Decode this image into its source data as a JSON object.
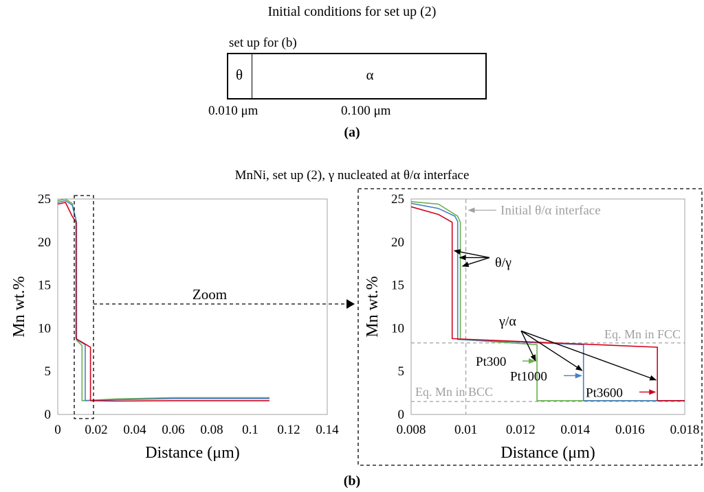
{
  "setup_panel": {
    "title": "Initial conditions for set up (2)",
    "subtitle": "set up for (b)",
    "theta_label": "θ",
    "alpha_label": "α",
    "theta_length": "0.010 μm",
    "alpha_length": "0.100 μm",
    "panel_label": "(a)"
  },
  "figure": {
    "title": "MnNi, set up (2), γ nucleated at θ/α interface",
    "panel_label": "(b)"
  },
  "colors": {
    "pt300": "#6ab04c",
    "pt1000": "#4a7fc1",
    "pt3600": "#d0021b",
    "axis": "#a0a0a0",
    "reference": "#a0a0a0",
    "annotation": "#000000"
  },
  "chart_data": [
    {
      "type": "line",
      "xlabel": "Distance (μm)",
      "ylabel": "Mn wt.%",
      "xlim": [
        0,
        0.14
      ],
      "ylim": [
        0,
        25
      ],
      "xticks": [
        "0",
        "0.02",
        "0.04",
        "0.06",
        "0.08",
        "0.1",
        "0.12",
        "0.14"
      ],
      "yticks": [
        "0",
        "5",
        "10",
        "15",
        "20",
        "25"
      ],
      "zoom_label": "Zoom",
      "zoom_region": {
        "x": [
          0.008,
          0.018
        ],
        "y": [
          0,
          25
        ]
      },
      "series": [
        {
          "key": "pt300",
          "points": [
            [
              0,
              24.8
            ],
            [
              0.004,
              25
            ],
            [
              0.0075,
              24.5
            ],
            [
              0.0098,
              22.3
            ],
            [
              0.0098,
              8.6
            ],
            [
              0.0126,
              8
            ],
            [
              0.0126,
              1.6
            ],
            [
              0.03,
              1.8
            ],
            [
              0.06,
              1.95
            ],
            [
              0.11,
              1.95
            ]
          ]
        },
        {
          "key": "pt1000",
          "points": [
            [
              0,
              24.6
            ],
            [
              0.004,
              24.8
            ],
            [
              0.0075,
              24.3
            ],
            [
              0.0097,
              22.3
            ],
            [
              0.0097,
              8.7
            ],
            [
              0.0143,
              8.1
            ],
            [
              0.0143,
              1.6
            ],
            [
              0.03,
              1.7
            ],
            [
              0.06,
              1.85
            ],
            [
              0.11,
              1.85
            ]
          ]
        },
        {
          "key": "pt3600",
          "points": [
            [
              0,
              24.4
            ],
            [
              0.004,
              24.6
            ],
            [
              0.0075,
              23
            ],
            [
              0.0095,
              22.3
            ],
            [
              0.0095,
              8.8
            ],
            [
              0.017,
              7.8
            ],
            [
              0.017,
              1.6
            ],
            [
              0.03,
              1.55
            ],
            [
              0.06,
              1.6
            ],
            [
              0.11,
              1.6
            ]
          ]
        }
      ]
    },
    {
      "type": "line",
      "xlabel": "Distance (μm)",
      "ylabel": "Mn wt.%",
      "xlim": [
        0.008,
        0.018
      ],
      "ylim": [
        0,
        25
      ],
      "xticks": [
        "0.008",
        "0.01",
        "0.012",
        "0.014",
        "0.016",
        "0.018"
      ],
      "yticks": [
        "0",
        "5",
        "10",
        "15",
        "20",
        "25"
      ],
      "reference_lines": {
        "eq_fcc": {
          "y": 8.3,
          "label": "Eq. Mn in FCC"
        },
        "eq_bcc": {
          "y": 1.5,
          "label": "Eq. Mn in BCC"
        },
        "initial_interface": {
          "x": 0.01,
          "label": "Initial θ/α interface"
        }
      },
      "annotations": {
        "theta_gamma": "θ/γ",
        "gamma_alpha": "γ/α",
        "series_labels": {
          "pt300": "Pt300",
          "pt1000": "Pt1000",
          "pt3600": "Pt3600"
        }
      },
      "series": [
        {
          "key": "pt300",
          "points": [
            [
              0.008,
              24.7
            ],
            [
              0.009,
              24.4
            ],
            [
              0.0097,
              23
            ],
            [
              0.0098,
              22.3
            ],
            [
              0.0098,
              8.7
            ],
            [
              0.0126,
              8.1
            ],
            [
              0.0126,
              1.6
            ],
            [
              0.0143,
              1.6
            ],
            [
              0.018,
              1.6
            ]
          ]
        },
        {
          "key": "pt1000",
          "points": [
            [
              0.008,
              24.5
            ],
            [
              0.009,
              23.9
            ],
            [
              0.0096,
              23
            ],
            [
              0.0097,
              22.4
            ],
            [
              0.0097,
              8.7
            ],
            [
              0.0143,
              8.1
            ],
            [
              0.0143,
              1.6
            ],
            [
              0.018,
              1.6
            ]
          ]
        },
        {
          "key": "pt3600",
          "points": [
            [
              0.008,
              24.1
            ],
            [
              0.009,
              23.2
            ],
            [
              0.0095,
              22.3
            ],
            [
              0.0095,
              8.8
            ],
            [
              0.017,
              7.8
            ],
            [
              0.017,
              1.6
            ],
            [
              0.018,
              1.6
            ]
          ]
        }
      ]
    }
  ]
}
